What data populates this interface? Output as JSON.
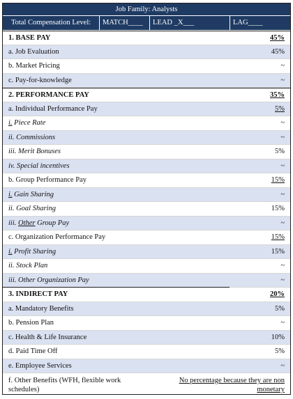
{
  "title": "Job Family: Analysts",
  "level_bar": {
    "label": "Total Compensation Level:",
    "match": "MATCH____",
    "lead": "LEAD _X___",
    "lag": "LAG____"
  },
  "sections": {
    "base": {
      "heading": "1. BASE PAY",
      "total": "45%",
      "rows": [
        {
          "label": "a. Job Evaluation",
          "value": "45%"
        },
        {
          "label": "b. Market Pricing",
          "value": "~"
        },
        {
          "label": "c. Pay-for-knowledge",
          "value": "~"
        }
      ]
    },
    "performance": {
      "heading": "2. PERFORMANCE PAY",
      "total": "35%",
      "individual": {
        "label": "a. Individual Performance Pay",
        "value": "5%"
      },
      "piece_rate": {
        "prefix": "i.",
        "label": " Piece Rate",
        "value": "~"
      },
      "commissions": {
        "label": "ii. Commissions",
        "value": "~"
      },
      "merit": {
        "label": "iii. Merit Bonuses",
        "value": "5%"
      },
      "special": {
        "label": "iv. Special incentives",
        "value": "~"
      },
      "group": {
        "label": "b. Group Performance Pay",
        "value": "15%"
      },
      "gain": {
        "prefix": "i.",
        "label": " Gain Sharing",
        "value": "~"
      },
      "goal": {
        "label": "ii. Goal Sharing",
        "value": "15%"
      },
      "other_group": {
        "prefix": "iii. ",
        "under": "Other",
        "label": " Group Pay",
        "value": "~"
      },
      "org": {
        "label": "c. Organization Performance Pay",
        "value": "15%"
      },
      "profit": {
        "prefix": "i.",
        "label": " Profit Sharing",
        "value": "15%"
      },
      "stock": {
        "label": "ii. Stock Plan",
        "value": "~"
      },
      "other_org": {
        "label": "iii. Other Organization Pay",
        "value": "~"
      }
    },
    "indirect": {
      "heading": "3. INDIRECT PAY",
      "total": "20%",
      "rows": [
        {
          "label": "a. Mandatory Benefits",
          "value": "5%"
        },
        {
          "label": "b. Pension Plan",
          "value": "~"
        },
        {
          "label": "c. Health & Life Insurance",
          "value": "10%"
        },
        {
          "label": "d. Paid Time Off",
          "value": "5%"
        },
        {
          "label": "e. Employee Services",
          "value": "~"
        }
      ],
      "other": {
        "label": "f. Other Benefits (WFH, flexible work schedules)",
        "value": "No percentage because they are non monetary"
      }
    }
  }
}
